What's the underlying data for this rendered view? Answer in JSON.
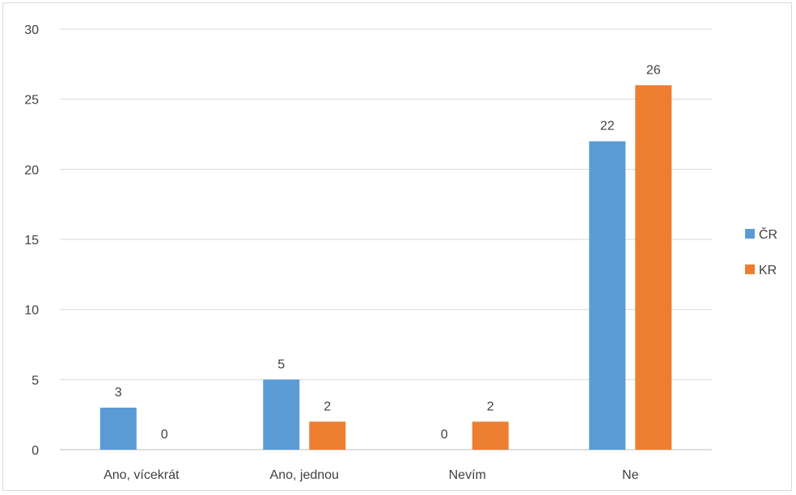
{
  "chart_data": {
    "type": "bar",
    "categories": [
      "Ano, vícekrát",
      "Ano, jednou",
      "Nevím",
      "Ne"
    ],
    "series": [
      {
        "name": "ČR",
        "values": [
          3,
          5,
          0,
          22
        ],
        "color": "#5b9bd5"
      },
      {
        "name": "KR",
        "values": [
          0,
          2,
          2,
          26
        ],
        "color": "#ed7d31"
      }
    ],
    "y_ticks": [
      "0",
      "5",
      "10",
      "15",
      "20",
      "25",
      "30"
    ],
    "ylim": [
      0,
      30
    ],
    "grid": true,
    "data_labels": true,
    "legend_position": "right"
  }
}
